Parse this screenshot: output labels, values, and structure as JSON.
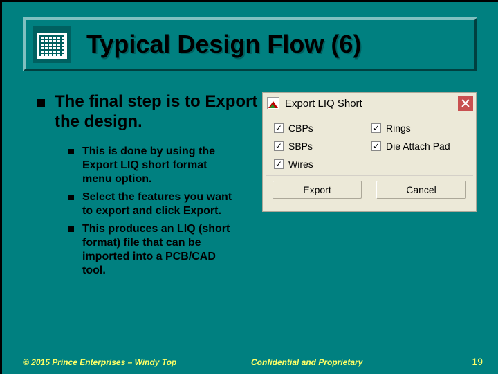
{
  "colors": {
    "background": "#008080",
    "bevel_light": "#80c0c0",
    "bevel_dark": "#004040",
    "text": "#000000",
    "footer_text": "#ffff66",
    "dialog_bg": "#ece9d8",
    "dialog_border": "#aca899",
    "close_bg": "#c85050"
  },
  "title": "Typical Design Flow (6)",
  "main_bullet": "The final step is to Export the design.",
  "sub_bullets": [
    "This is done by using the Export LIQ short format menu option.",
    "Select the features you want to export and click Export.",
    "This produces an LIQ (short format) file that can be imported into a PCB/CAD tool."
  ],
  "dialog": {
    "title": "Export LIQ Short",
    "checkboxes": [
      {
        "label": "CBPs",
        "checked": true
      },
      {
        "label": "Rings",
        "checked": true
      },
      {
        "label": "SBPs",
        "checked": true
      },
      {
        "label": "Die Attach Pad",
        "checked": true
      },
      {
        "label": "Wires",
        "checked": true
      }
    ],
    "buttons": {
      "export": "Export",
      "cancel": "Cancel"
    }
  },
  "footer": {
    "copyright": "© 2015 Prince Enterprises – Windy Top",
    "confidential": "Confidential and Proprietary",
    "page": "19"
  }
}
